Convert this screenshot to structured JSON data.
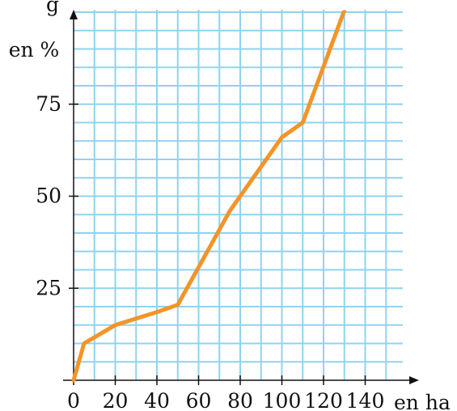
{
  "chart_data": {
    "type": "line",
    "title": "",
    "xlabel": "en ha",
    "ylabel": "en %",
    "ylabel_partial_text": "g",
    "xlim": [
      0,
      160
    ],
    "ylim": [
      0,
      100
    ],
    "x_ticks": [
      0,
      20,
      40,
      60,
      80,
      100,
      120,
      140
    ],
    "x_tick_labels": [
      "0",
      "20",
      "40",
      "60",
      "80",
      "100",
      "120",
      "140"
    ],
    "y_ticks": [
      25,
      50,
      75
    ],
    "y_tick_labels": [
      "25",
      "50",
      "75"
    ],
    "grid": true,
    "grid_x_step": 10,
    "grid_y_step": 5,
    "series": [
      {
        "x": [
          0,
          5,
          20,
          40,
          50,
          75,
          100,
          110,
          130
        ],
        "y": [
          0,
          10,
          15,
          18.5,
          20.5,
          46,
          66,
          70,
          100.5
        ]
      }
    ]
  },
  "colors": {
    "line": "#f39428",
    "grid": "#8fd3f2",
    "axis": "#111111",
    "background": "#ffffff"
  }
}
